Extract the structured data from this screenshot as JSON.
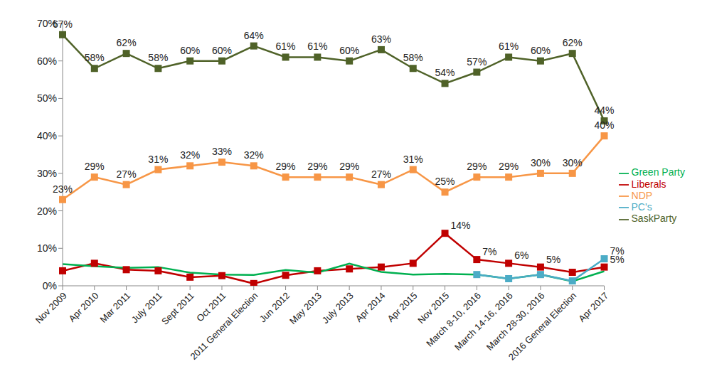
{
  "chart_data": {
    "type": "line",
    "categories": [
      "Nov 2009",
      "Apr 2010",
      "Mar 2011",
      "July 2011",
      "Sept 2011",
      "Oct 2011",
      "2011 General Election",
      "Jun 2012",
      "May 2013",
      "July 2013",
      "Apr 2014",
      "Apr 2015",
      "Nov 2015",
      "March 8-10, 2016",
      "March 14-16, 2016",
      "March 28-30, 2016",
      "2016 General Election",
      "Apr 2017"
    ],
    "series": [
      {
        "name": "SaskParty",
        "color": "#4F6228",
        "marker": "square",
        "values": [
          67,
          58,
          62,
          58,
          60,
          60,
          64,
          61,
          61,
          60,
          63,
          58,
          54,
          57,
          61,
          60,
          62,
          44
        ],
        "value_labels": [
          "67%",
          "58%",
          "62%",
          "58%",
          "60%",
          "60%",
          "64%",
          "61%",
          "61%",
          "60%",
          "63%",
          "58%",
          "54%",
          "57%",
          "61%",
          "60%",
          "62%",
          "44%"
        ]
      },
      {
        "name": "NDP",
        "color": "#F79646",
        "marker": "square",
        "values": [
          23,
          29,
          27,
          31,
          32,
          33,
          32,
          29,
          29,
          29,
          27,
          31,
          25,
          29,
          29,
          30,
          30,
          40
        ],
        "value_labels": [
          "23%",
          "29%",
          "27%",
          "31%",
          "32%",
          "33%",
          "32%",
          "29%",
          "29%",
          "29%",
          "27%",
          "31%",
          "25%",
          "29%",
          "29%",
          "30%",
          "30%",
          "40%"
        ]
      },
      {
        "name": "Liberals",
        "color": "#C00000",
        "marker": "square",
        "values": [
          4,
          6,
          4.3,
          4,
          2.3,
          2.7,
          0.6,
          2.8,
          4,
          4.5,
          5,
          6,
          14,
          7,
          6,
          5,
          3.6,
          5
        ],
        "value_labels": [
          null,
          null,
          null,
          null,
          null,
          null,
          null,
          null,
          null,
          null,
          null,
          null,
          "14%",
          "7%",
          "6%",
          "5%",
          null,
          "5%"
        ]
      },
      {
        "name": "Green Party",
        "color": "#00B050",
        "marker": "none",
        "values": [
          5.8,
          5.2,
          4.8,
          5,
          3.5,
          3,
          2.9,
          4.2,
          3.5,
          5.9,
          3.7,
          3,
          3.2,
          3,
          1.9,
          3,
          1.2,
          3.9
        ]
      },
      {
        "name": "PC's",
        "color": "#4BACC6",
        "marker": "square",
        "values": [
          null,
          null,
          null,
          null,
          null,
          null,
          null,
          null,
          null,
          null,
          null,
          null,
          null,
          3,
          1.9,
          3,
          1.3,
          7.2
        ],
        "value_labels": [
          null,
          null,
          null,
          null,
          null,
          null,
          null,
          null,
          null,
          null,
          null,
          null,
          null,
          null,
          null,
          null,
          null,
          "7%"
        ]
      }
    ],
    "ylim": [
      0,
      70
    ],
    "yticks": [
      {
        "value": 0,
        "label": "0%"
      },
      {
        "value": 10,
        "label": "10%"
      },
      {
        "value": 20,
        "label": "20%"
      },
      {
        "value": 30,
        "label": "30%"
      },
      {
        "value": 40,
        "label": "40%"
      },
      {
        "value": 50,
        "label": "50%"
      },
      {
        "value": 60,
        "label": "60%"
      },
      {
        "value": 70,
        "label": "70%"
      }
    ],
    "grid": false,
    "legend": "right",
    "data_labels": true
  }
}
